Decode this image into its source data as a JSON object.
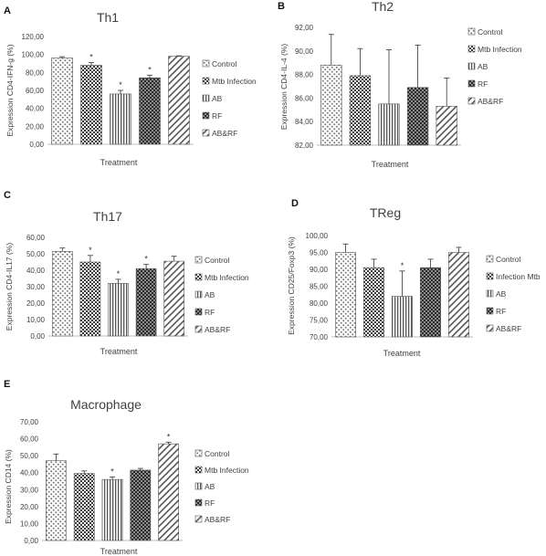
{
  "chart_data": [
    {
      "panel_label": "A",
      "type": "bar",
      "title": "Th1",
      "ylabel": "Expression CD4-IFN-g (%)",
      "xlabel": "Treatment",
      "ylim": [
        0,
        120
      ],
      "yticks": [
        "0,00",
        "20,00",
        "40,00",
        "60,00",
        "80,00",
        "100,00",
        "120,00"
      ],
      "categories": [
        "Control",
        "Mtb Infection",
        "AB",
        "RF",
        "AB&RF"
      ],
      "values": [
        96,
        88,
        56,
        74,
        98
      ],
      "errors": [
        1.5,
        3,
        4,
        3,
        0.5
      ],
      "significance": [
        "",
        "*",
        "*",
        "*",
        ""
      ]
    },
    {
      "panel_label": "B",
      "type": "bar",
      "title": "Th2",
      "ylabel": "Expression CD4-IL-4 (%)",
      "xlabel": "Treatment",
      "ylim": [
        82,
        92
      ],
      "yticks": [
        "82,00",
        "84,00",
        "86,00",
        "88,00",
        "90,00",
        "92,00"
      ],
      "categories": [
        "Control",
        "Mtb Infection",
        "AB",
        "RF",
        "AB&RF"
      ],
      "values": [
        88.8,
        87.9,
        85.5,
        86.9,
        85.3
      ],
      "errors": [
        2.6,
        2.3,
        4.6,
        3.6,
        2.4
      ],
      "significance": [
        "",
        "",
        "",
        "",
        ""
      ]
    },
    {
      "panel_label": "C",
      "type": "bar",
      "title": "Th17",
      "ylabel": "Expression CD4-IL17 (%)",
      "xlabel": "Treatment",
      "ylim": [
        0,
        60
      ],
      "yticks": [
        "0,00",
        "10,00",
        "20,00",
        "30,00",
        "40,00",
        "50,00",
        "60,00"
      ],
      "categories": [
        "Control",
        "Mtb Infection",
        "AB",
        "RF",
        "AB&RF"
      ],
      "values": [
        51.5,
        45,
        32,
        41,
        45.5
      ],
      "errors": [
        2,
        4,
        2.5,
        2.5,
        3
      ],
      "significance": [
        "",
        "*",
        "*",
        "*",
        ""
      ]
    },
    {
      "panel_label": "D",
      "type": "bar",
      "title": "TReg",
      "ylabel": "Expression CD25/Foxp3 (%)",
      "xlabel": "Treatment",
      "ylim": [
        70,
        100
      ],
      "yticks": [
        "70,00",
        "75,00",
        "80,00",
        "85,00",
        "90,00",
        "95,00",
        "100,00"
      ],
      "categories": [
        "Control",
        "Infection Mtb",
        "AB",
        "RF",
        "AB&RF"
      ],
      "values": [
        95,
        90.5,
        82,
        90.5,
        95
      ],
      "errors": [
        2.5,
        2.5,
        7.5,
        2.5,
        1.5
      ],
      "significance": [
        "",
        "",
        "*",
        "",
        ""
      ]
    },
    {
      "panel_label": "E",
      "type": "bar",
      "title": "Macrophage",
      "ylabel": "Expression CD14 (%)",
      "xlabel": "Treatment",
      "ylim": [
        0,
        70
      ],
      "yticks": [
        "0,00",
        "10,00",
        "20,00",
        "30,00",
        "40,00",
        "50,00",
        "60,00",
        "70,00"
      ],
      "categories": [
        "Control",
        "Mtb Infection",
        "AB",
        "RF",
        "AB&RF"
      ],
      "values": [
        47,
        39.5,
        36,
        41.5,
        57
      ],
      "errors": [
        4,
        1.5,
        1.5,
        1,
        1
      ],
      "significance": [
        "",
        "",
        "*",
        "",
        "*"
      ]
    }
  ]
}
